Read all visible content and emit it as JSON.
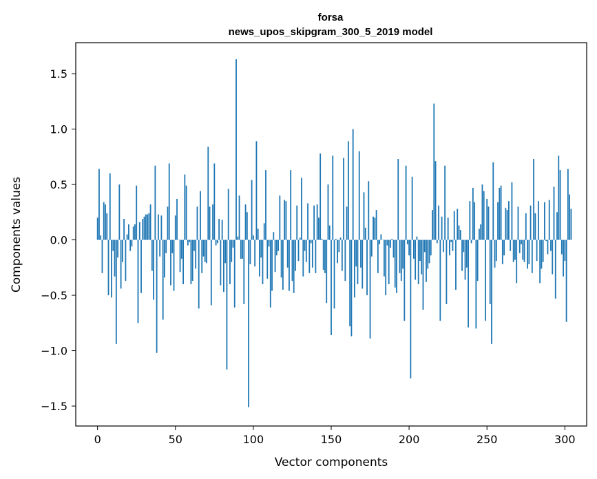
{
  "chart_data": {
    "type": "bar",
    "title_line1": "forsa",
    "title_line2": "news_upos_skipgram_300_5_2019 model",
    "xlabel": "Vector components",
    "ylabel": "Components values",
    "xlim": [
      -14,
      314
    ],
    "ylim": [
      -1.68,
      1.78
    ],
    "xticks": [
      0,
      50,
      100,
      150,
      200,
      250,
      300
    ],
    "xtick_labels": [
      "0",
      "50",
      "100",
      "150",
      "200",
      "250",
      "300"
    ],
    "yticks": [
      -1.5,
      -1.0,
      -0.5,
      0.0,
      0.5,
      1.0,
      1.5
    ],
    "ytick_labels": [
      "−1.5",
      "−1.0",
      "−0.5",
      "0.0",
      "0.5",
      "1.0",
      "1.5"
    ],
    "bar_color": "#1f77b4",
    "grid": false,
    "values": [
      0.2,
      0.64,
      0.04,
      -0.3,
      0.34,
      0.32,
      0.24,
      -0.5,
      0.6,
      -0.52,
      -0.1,
      -0.33,
      -0.94,
      -0.16,
      0.5,
      -0.44,
      -0.2,
      0.19,
      -0.37,
      0.05,
      0.14,
      -0.1,
      -0.06,
      0.12,
      0.14,
      0.49,
      -0.75,
      0.16,
      -0.48,
      0.19,
      0.21,
      0.23,
      0.23,
      0.24,
      0.32,
      -0.28,
      -0.54,
      0.67,
      -1.02,
      0.23,
      -0.15,
      0.22,
      -0.72,
      -0.34,
      -0.12,
      0.3,
      0.69,
      -0.41,
      -0.12,
      -0.46,
      0.22,
      0.37,
      0.0,
      -0.29,
      -0.17,
      -0.4,
      0.59,
      0.49,
      -0.05,
      -0.02,
      -0.4,
      -0.37,
      -0.1,
      -0.26,
      0.3,
      -0.62,
      0.44,
      -0.3,
      -0.15,
      -0.2,
      -0.21,
      0.84,
      0.3,
      -0.59,
      0.32,
      0.69,
      -0.05,
      -0.03,
      0.19,
      -0.41,
      0.18,
      -0.47,
      -0.21,
      -1.17,
      0.46,
      -0.4,
      -0.2,
      -0.07,
      -0.61,
      1.63,
      0.03,
      0.4,
      -0.17,
      -0.17,
      -0.58,
      0.32,
      0.25,
      -1.51,
      -0.22,
      0.54,
      0.04,
      -0.24,
      0.89,
      0.1,
      -0.33,
      -0.16,
      -0.4,
      0.15,
      0.63,
      -0.35,
      -0.06,
      -0.61,
      -0.46,
      0.07,
      -0.29,
      -0.14,
      -0.1,
      0.4,
      -0.34,
      -0.45,
      0.36,
      0.35,
      -0.25,
      -0.46,
      0.63,
      -0.37,
      -0.48,
      -0.28,
      0.31,
      -0.19,
      0.02,
      0.56,
      -0.33,
      -0.1,
      -0.2,
      0.33,
      -0.3,
      -0.03,
      -0.25,
      0.31,
      -0.3,
      0.32,
      0.2,
      0.78,
      0.01,
      -0.27,
      -0.3,
      -0.57,
      0.5,
      0.13,
      -0.86,
      0.76,
      -0.62,
      0.01,
      -0.21,
      -0.11,
      0.02,
      -0.28,
      0.74,
      -0.37,
      0.3,
      0.89,
      -0.78,
      -0.87,
      1.0,
      -0.52,
      -0.24,
      -0.4,
      0.8,
      -0.25,
      -0.44,
      0.43,
      0.11,
      -0.5,
      0.53,
      -0.89,
      -0.15,
      0.21,
      0.2,
      0.27,
      -0.3,
      -0.04,
      0.05,
      0.0,
      -0.33,
      -0.5,
      -0.05,
      -0.4,
      -0.07,
      0.01,
      -0.16,
      -0.43,
      -0.48,
      0.73,
      -0.3,
      -0.37,
      -0.26,
      -0.73,
      0.67,
      -0.04,
      -0.14,
      -1.25,
      0.57,
      -0.17,
      -0.36,
      0.03,
      -0.4,
      -0.19,
      -0.31,
      -0.63,
      -0.11,
      -0.38,
      -0.26,
      -0.21,
      -0.14,
      0.27,
      1.23,
      0.71,
      -0.03,
      0.31,
      -0.73,
      0.21,
      -0.11,
      0.67,
      -0.58,
      0.2,
      -0.14,
      -0.02,
      -0.1,
      0.26,
      -0.45,
      0.28,
      0.13,
      0.09,
      -0.28,
      -0.11,
      -0.36,
      -0.25,
      -0.79,
      0.35,
      -0.03,
      0.47,
      0.34,
      -0.8,
      -0.37,
      0.1,
      0.14,
      0.5,
      0.44,
      -0.73,
      0.37,
      0.3,
      -0.58,
      -0.94,
      0.7,
      -0.25,
      -0.19,
      0.34,
      0.47,
      0.49,
      -0.22,
      -0.14,
      0.29,
      0.27,
      0.35,
      -0.1,
      0.52,
      -0.2,
      -0.18,
      -0.39,
      0.3,
      -0.12,
      -0.04,
      -0.18,
      -0.2,
      0.24,
      -0.26,
      -0.22,
      0.31,
      -0.3,
      0.73,
      0.24,
      -0.19,
      0.35,
      -0.39,
      -0.26,
      -0.2,
      0.34,
      -0.01,
      -0.13,
      0.36,
      -0.1,
      -0.31,
      0.48,
      -0.53,
      0.25,
      0.76,
      0.63,
      -0.13,
      -0.33,
      -0.19,
      -0.74,
      0.64,
      0.41,
      0.28
    ]
  }
}
